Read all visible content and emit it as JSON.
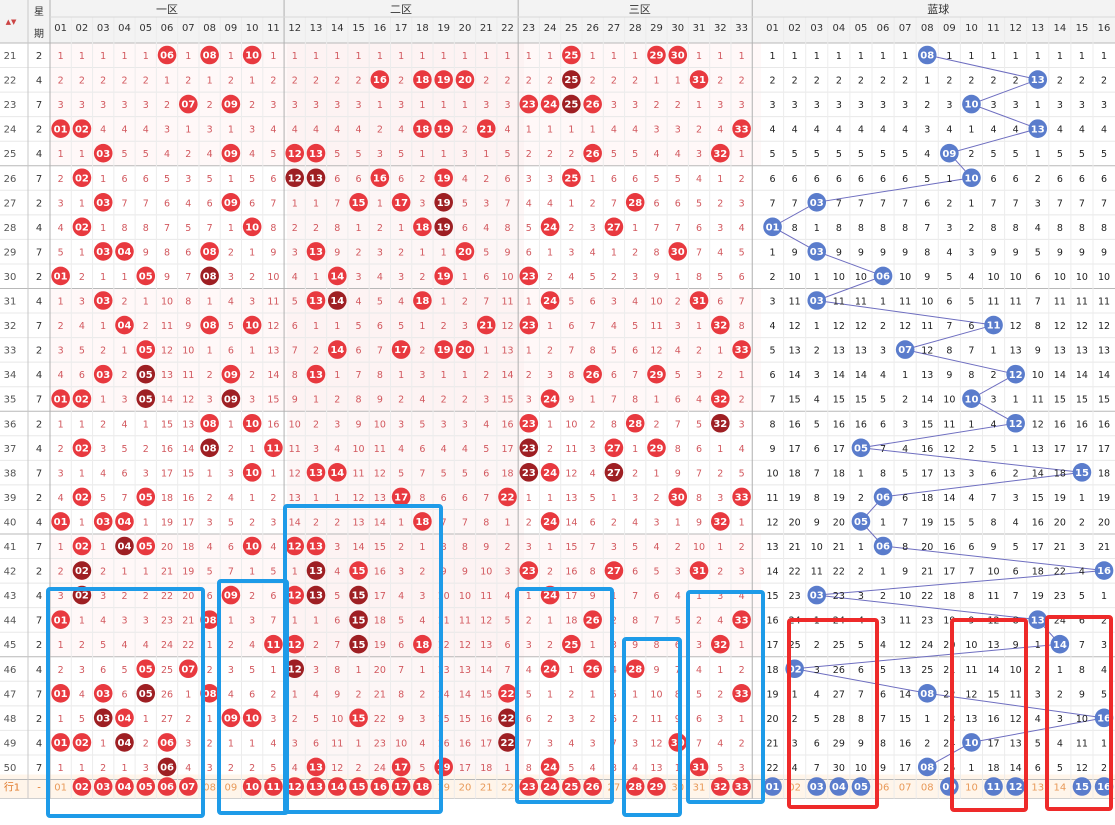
{
  "chart_data": {
    "type": "table",
    "title": "",
    "header": {
      "sort_caret": "▲▼",
      "weekday_label": [
        "星",
        "期"
      ],
      "zones": [
        {
          "label": "一区",
          "numbers": [
            "01",
            "02",
            "03",
            "04",
            "05",
            "06",
            "07",
            "08",
            "09",
            "10",
            "11"
          ]
        },
        {
          "label": "二区",
          "numbers": [
            "12",
            "13",
            "14",
            "15",
            "16",
            "17",
            "18",
            "19",
            "20",
            "21",
            "22"
          ]
        },
        {
          "label": "三区",
          "numbers": [
            "23",
            "24",
            "25",
            "26",
            "27",
            "28",
            "29",
            "30",
            "31",
            "32",
            "33"
          ]
        },
        {
          "label": "蓝球",
          "numbers": [
            "01",
            "02",
            "03",
            "04",
            "05",
            "06",
            "07",
            "08",
            "09",
            "10",
            "11",
            "12",
            "13",
            "14",
            "15",
            "16"
          ]
        }
      ]
    },
    "rows": [
      {
        "issue": "21",
        "weekday": "2",
        "red": [
          6,
          8,
          10,
          25,
          29,
          30
        ],
        "blue": 8
      },
      {
        "issue": "22",
        "weekday": "4",
        "red": [
          16,
          18,
          19,
          20,
          25,
          31
        ],
        "blue": 13
      },
      {
        "issue": "23",
        "weekday": "7",
        "red": [
          7,
          9,
          23,
          24,
          25,
          26
        ],
        "blue": 10
      },
      {
        "issue": "24",
        "weekday": "2",
        "red": [
          1,
          2,
          18,
          19,
          21,
          33
        ],
        "blue": 13
      },
      {
        "issue": "25",
        "weekday": "4",
        "red": [
          3,
          9,
          12,
          13,
          26,
          32
        ],
        "blue": 9
      },
      {
        "issue": "26",
        "weekday": "7",
        "red": [
          2,
          12,
          13,
          16,
          19,
          25
        ],
        "blue": 10
      },
      {
        "issue": "27",
        "weekday": "2",
        "red": [
          3,
          9,
          15,
          17,
          19,
          28
        ],
        "blue": 3
      },
      {
        "issue": "28",
        "weekday": "4",
        "red": [
          2,
          10,
          18,
          19,
          24,
          27
        ],
        "blue": 1
      },
      {
        "issue": "29",
        "weekday": "7",
        "red": [
          3,
          4,
          8,
          13,
          20,
          30
        ],
        "blue": 3
      },
      {
        "issue": "30",
        "weekday": "2",
        "red": [
          1,
          5,
          8,
          14,
          19,
          23
        ],
        "blue": 6
      },
      {
        "issue": "31",
        "weekday": "4",
        "red": [
          3,
          13,
          14,
          18,
          24,
          31
        ],
        "blue": 3
      },
      {
        "issue": "32",
        "weekday": "7",
        "red": [
          4,
          8,
          10,
          21,
          23,
          32
        ],
        "blue": 11
      },
      {
        "issue": "33",
        "weekday": "2",
        "red": [
          5,
          14,
          17,
          19,
          20,
          33
        ],
        "blue": 7
      },
      {
        "issue": "34",
        "weekday": "4",
        "red": [
          3,
          5,
          9,
          13,
          26,
          29
        ],
        "blue": 12
      },
      {
        "issue": "35",
        "weekday": "7",
        "red": [
          1,
          2,
          5,
          9,
          24,
          32
        ],
        "blue": 10
      },
      {
        "issue": "36",
        "weekday": "2",
        "red": [
          8,
          10,
          23,
          28,
          32
        ],
        "blue": 12
      },
      {
        "issue": "37",
        "weekday": "4",
        "red": [
          2,
          8,
          11,
          23,
          27,
          29
        ],
        "blue": 5
      },
      {
        "issue": "38",
        "weekday": "7",
        "red": [
          10,
          13,
          14,
          23,
          24,
          27
        ],
        "blue": 15
      },
      {
        "issue": "39",
        "weekday": "2",
        "red": [
          2,
          5,
          17,
          22,
          30,
          33
        ],
        "blue": 6
      },
      {
        "issue": "40",
        "weekday": "4",
        "red": [
          1,
          3,
          4,
          18,
          24,
          32
        ],
        "blue": 5
      },
      {
        "issue": "41",
        "weekday": "7",
        "red": [
          2,
          4,
          5,
          10,
          12,
          13
        ],
        "blue": 6
      },
      {
        "issue": "42",
        "weekday": "2",
        "red": [
          2,
          13,
          15,
          23,
          27,
          31
        ],
        "blue": 16
      },
      {
        "issue": "43",
        "weekday": "4",
        "red": [
          2,
          9,
          12,
          13,
          15,
          24
        ],
        "blue": 3
      },
      {
        "issue": "44",
        "weekday": "7",
        "red": [
          1,
          8,
          15,
          26,
          33
        ],
        "blue": 13
      },
      {
        "issue": "45",
        "weekday": "2",
        "red": [
          11,
          12,
          15,
          18,
          25,
          32
        ],
        "blue": 14
      },
      {
        "issue": "46",
        "weekday": "4",
        "red": [
          5,
          7,
          12,
          24,
          26,
          28
        ],
        "blue": 2
      },
      {
        "issue": "47",
        "weekday": "7",
        "red": [
          1,
          3,
          5,
          8,
          22,
          33
        ],
        "blue": 8
      },
      {
        "issue": "48",
        "weekday": "2",
        "red": [
          3,
          4,
          9,
          10,
          15,
          22
        ],
        "blue": 16
      },
      {
        "issue": "49",
        "weekday": "4",
        "red": [
          1,
          2,
          4,
          6,
          22,
          30
        ],
        "blue": 10
      },
      {
        "issue": "50",
        "weekday": "7",
        "red": [
          6,
          13,
          17,
          19,
          24,
          31
        ],
        "blue": 8
      }
    ],
    "footer": {
      "label": "行1",
      "dash": "-",
      "red_highlight": [
        2,
        3,
        4,
        5,
        6,
        7,
        10,
        11,
        12,
        13,
        14,
        15,
        16,
        17,
        18,
        23,
        24,
        25,
        26,
        28,
        29,
        32,
        33
      ],
      "blue_highlight": [
        1,
        3,
        4,
        5,
        9,
        11,
        12,
        15,
        16
      ]
    },
    "colors": {
      "hit_red": "#e8393f",
      "hit_dark": "#9e1f23",
      "hit_blue": "#5a7ccc",
      "miss_text": "#d2585e",
      "blue_zone_text": "#222222",
      "frame_blue": "#1e9be8",
      "frame_red": "#ee2a2a"
    },
    "highlight_boxes": [
      {
        "color": "blue",
        "columns": "red 01-07",
        "rows": "43-50"
      },
      {
        "color": "blue",
        "columns": "red 09-11",
        "rows": "42-50"
      },
      {
        "color": "blue",
        "columns": "red 12-18",
        "rows": "40-50"
      },
      {
        "color": "blue",
        "columns": "red 23-26",
        "rows": "43-50"
      },
      {
        "color": "blue",
        "columns": "red 28-29",
        "rows": "45-50"
      },
      {
        "color": "blue",
        "columns": "red 31-33",
        "rows": "43-50"
      },
      {
        "color": "red",
        "columns": "blue 02-05",
        "rows": "44-50"
      },
      {
        "color": "red",
        "columns": "blue 10-12",
        "rows": "44-50"
      },
      {
        "color": "red",
        "columns": "blue 15-16",
        "rows": "44-50"
      }
    ]
  }
}
